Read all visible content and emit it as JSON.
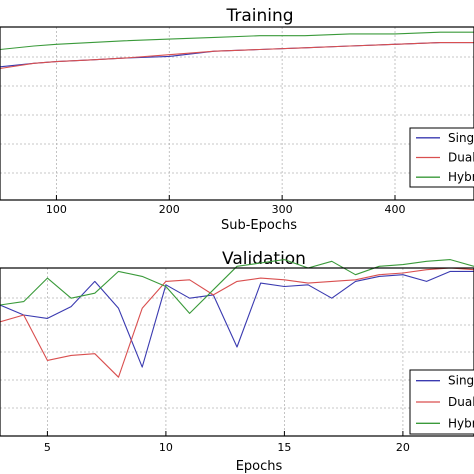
{
  "chart_data": [
    {
      "type": "line",
      "title": "Training",
      "xlabel": "Sub-Epochs",
      "ylabel": "",
      "xlim": [
        50,
        470
      ],
      "ylim": [
        0.0,
        1.0
      ],
      "xticks": [
        "100",
        "200",
        "300",
        "400"
      ],
      "grid": true,
      "legend_placement": "lower-right",
      "series": [
        {
          "name": "Single",
          "color": "#3a3ab0",
          "x": [
            50,
            80,
            100,
            130,
            160,
            200,
            240,
            280,
            320,
            360,
            400,
            440,
            470
          ],
          "y": [
            0.77,
            0.79,
            0.8,
            0.81,
            0.82,
            0.83,
            0.86,
            0.87,
            0.88,
            0.89,
            0.9,
            0.91,
            0.91
          ]
        },
        {
          "name": "Dual",
          "color": "#d94f4f",
          "x": [
            50,
            80,
            100,
            130,
            160,
            200,
            240,
            280,
            320,
            360,
            400,
            440,
            470
          ],
          "y": [
            0.76,
            0.79,
            0.8,
            0.81,
            0.82,
            0.84,
            0.86,
            0.87,
            0.88,
            0.89,
            0.9,
            0.91,
            0.91
          ]
        },
        {
          "name": "Hybrid",
          "color": "#3a9a3a",
          "x": [
            50,
            80,
            100,
            130,
            160,
            200,
            240,
            280,
            320,
            360,
            400,
            440,
            470
          ],
          "y": [
            0.87,
            0.89,
            0.9,
            0.91,
            0.92,
            0.93,
            0.94,
            0.95,
            0.95,
            0.96,
            0.96,
            0.97,
            0.97
          ]
        }
      ]
    },
    {
      "type": "line",
      "title": "Validation",
      "xlabel": "Epochs",
      "ylabel": "",
      "xlim": [
        3,
        23
      ],
      "ylim": [
        0.0,
        1.0
      ],
      "xticks": [
        "5",
        "10",
        "15",
        "20"
      ],
      "grid": true,
      "legend_placement": "lower-right",
      "series": [
        {
          "name": "Single",
          "color": "#3a3ab0",
          "x": [
            3,
            4,
            5,
            6,
            7,
            8,
            9,
            10,
            11,
            12,
            13,
            14,
            15,
            16,
            17,
            18,
            19,
            20,
            21,
            22,
            23
          ],
          "y": [
            0.78,
            0.72,
            0.7,
            0.77,
            0.92,
            0.76,
            0.41,
            0.9,
            0.82,
            0.84,
            0.53,
            0.91,
            0.89,
            0.9,
            0.82,
            0.92,
            0.95,
            0.96,
            0.92,
            0.98,
            0.98
          ]
        },
        {
          "name": "Dual",
          "color": "#d94f4f",
          "x": [
            3,
            4,
            5,
            6,
            7,
            8,
            9,
            10,
            11,
            12,
            13,
            14,
            15,
            16,
            17,
            18,
            19,
            20,
            21,
            22,
            23
          ],
          "y": [
            0.68,
            0.72,
            0.45,
            0.48,
            0.49,
            0.35,
            0.76,
            0.92,
            0.93,
            0.84,
            0.92,
            0.94,
            0.93,
            0.91,
            0.92,
            0.93,
            0.96,
            0.97,
            0.99,
            1.0,
            0.99
          ]
        },
        {
          "name": "Hybrid",
          "color": "#3a9a3a",
          "x": [
            3,
            4,
            5,
            6,
            7,
            8,
            9,
            10,
            11,
            12,
            13,
            14,
            15,
            16,
            17,
            18,
            19,
            20,
            21,
            22,
            23
          ],
          "y": [
            0.78,
            0.8,
            0.94,
            0.82,
            0.85,
            0.98,
            0.95,
            0.89,
            0.73,
            0.87,
            1.01,
            1.03,
            1.05,
            1.0,
            1.04,
            0.96,
            1.01,
            1.02,
            1.04,
            1.05,
            1.01
          ]
        }
      ]
    }
  ]
}
